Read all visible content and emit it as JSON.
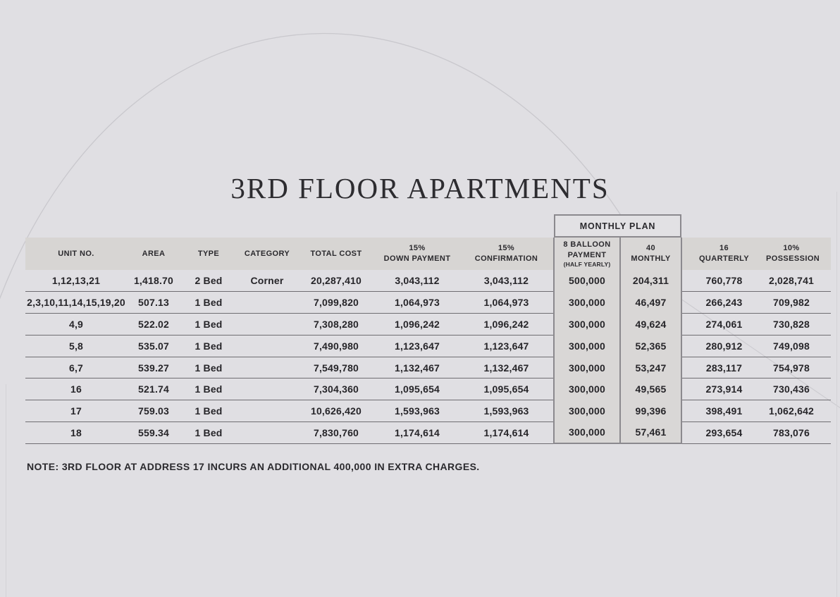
{
  "page": {
    "title": "3RD FLOOR APARTMENTS",
    "note": {
      "label": "NOTE:",
      "text": "3RD FLOOR AT ADDRESS 17 INCURS AN ADDITIONAL 400,000 IN EXTRA CHARGES."
    }
  },
  "table": {
    "monthly_plan_header": "MONTHLY PLAN",
    "columns": [
      {
        "key": "unit_no",
        "label": "UNIT NO."
      },
      {
        "key": "area",
        "label": "AREA"
      },
      {
        "key": "type",
        "label": "TYPE"
      },
      {
        "key": "category",
        "label": "CATEGORY"
      },
      {
        "key": "total_cost",
        "label": "TOTAL COST"
      },
      {
        "key": "down_payment_15",
        "label": "15%\nDOWN PAYMENT"
      },
      {
        "key": "confirmation_15",
        "label": "15%\nCONFIRMATION"
      },
      {
        "key": "balloon_payment_8",
        "label": "8 BALLOON\nPAYMENT",
        "sublabel": "(HALF YEARLY)"
      },
      {
        "key": "monthly_40",
        "label": "40\nMONTHLY"
      },
      {
        "key": "quarterly_16",
        "label": "16\nQUARTERLY"
      },
      {
        "key": "possession_10",
        "label": "10%\nPOSSESSION"
      }
    ],
    "rows": [
      [
        "1,12,13,21",
        "1,418.70",
        "2 Bed",
        "Corner",
        "20,287,410",
        "3,043,112",
        "3,043,112",
        "500,000",
        "204,311",
        "760,778",
        "2,028,741"
      ],
      [
        "2,3,10,11,14,15,19,20",
        "507.13",
        "1 Bed",
        "",
        "7,099,820",
        "1,064,973",
        "1,064,973",
        "300,000",
        "46,497",
        "266,243",
        "709,982"
      ],
      [
        "4,9",
        "522.02",
        "1 Bed",
        "",
        "7,308,280",
        "1,096,242",
        "1,096,242",
        "300,000",
        "49,624",
        "274,061",
        "730,828"
      ],
      [
        "5,8",
        "535.07",
        "1 Bed",
        "",
        "7,490,980",
        "1,123,647",
        "1,123,647",
        "300,000",
        "52,365",
        "280,912",
        "749,098"
      ],
      [
        "6,7",
        "539.27",
        "1 Bed",
        "",
        "7,549,780",
        "1,132,467",
        "1,132,467",
        "300,000",
        "53,247",
        "283,117",
        "754,978"
      ],
      [
        "16",
        "521.74",
        "1 Bed",
        "",
        "7,304,360",
        "1,095,654",
        "1,095,654",
        "300,000",
        "49,565",
        "273,914",
        "730,436"
      ],
      [
        "17",
        "759.03",
        "1 Bed",
        "",
        "10,626,420",
        "1,593,963",
        "1,593,963",
        "300,000",
        "99,396",
        "398,491",
        "1,062,642"
      ],
      [
        "18",
        "559.34",
        "1 Bed",
        "",
        "7,830,760",
        "1,174,614",
        "1,174,614",
        "300,000",
        "57,461",
        "293,654",
        "783,076"
      ]
    ],
    "colors": {
      "page_background": "#e0dfe3",
      "header_band": "#d7d5d3",
      "plan_column_fill": "#d9d7d6",
      "plan_border": "#8b898e",
      "row_rule": "#6f6d72",
      "text": "#29282c",
      "decor_line": "#c9c8cd"
    }
  }
}
